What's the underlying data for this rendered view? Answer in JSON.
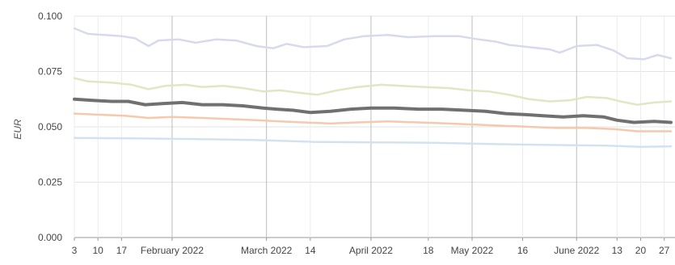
{
  "chart_data": {
    "type": "line",
    "title": "",
    "xlabel": "",
    "ylabel": "EUR",
    "ylim": [
      0,
      0.1
    ],
    "y_ticks": [
      "0.000",
      "0.025",
      "0.050",
      "0.075",
      "0.100"
    ],
    "x_range": [
      "2022-01-03",
      "2022-06-29"
    ],
    "x_ticks": [
      {
        "label": "3",
        "date": "2022-01-03",
        "major": false
      },
      {
        "label": "10",
        "date": "2022-01-10",
        "major": false
      },
      {
        "label": "17",
        "date": "2022-01-17",
        "major": false
      },
      {
        "label": "February 2022",
        "date": "2022-02-01",
        "major": true
      },
      {
        "label": "March 2022",
        "date": "2022-03-01",
        "major": true
      },
      {
        "label": "14",
        "date": "2022-03-14",
        "major": false
      },
      {
        "label": "April 2022",
        "date": "2022-04-01",
        "major": true
      },
      {
        "label": "18",
        "date": "2022-04-18",
        "major": false
      },
      {
        "label": "May 2022",
        "date": "2022-05-01",
        "major": true
      },
      {
        "label": "16",
        "date": "2022-05-16",
        "major": false
      },
      {
        "label": "June 2022",
        "date": "2022-06-01",
        "major": true
      },
      {
        "label": "13",
        "date": "2022-06-13",
        "major": false
      },
      {
        "label": "20",
        "date": "2022-06-20",
        "major": false
      },
      {
        "label": "27",
        "date": "2022-06-27",
        "major": false
      }
    ],
    "grid": true,
    "legend": "none",
    "series": [
      {
        "color": "#d9d9ee",
        "width": 2.5,
        "points": [
          [
            "2022-01-03",
            0.0945
          ],
          [
            "2022-01-07",
            0.092
          ],
          [
            "2022-01-12",
            0.0915
          ],
          [
            "2022-01-17",
            0.091
          ],
          [
            "2022-01-21",
            0.09
          ],
          [
            "2022-01-25",
            0.0865
          ],
          [
            "2022-01-28",
            0.089
          ],
          [
            "2022-02-03",
            0.0895
          ],
          [
            "2022-02-08",
            0.088
          ],
          [
            "2022-02-14",
            0.0895
          ],
          [
            "2022-02-20",
            0.089
          ],
          [
            "2022-02-26",
            0.0865
          ],
          [
            "2022-03-03",
            0.0855
          ],
          [
            "2022-03-07",
            0.0875
          ],
          [
            "2022-03-12",
            0.086
          ],
          [
            "2022-03-19",
            0.0865
          ],
          [
            "2022-03-24",
            0.0895
          ],
          [
            "2022-03-30",
            0.091
          ],
          [
            "2022-04-06",
            0.0915
          ],
          [
            "2022-04-12",
            0.0905
          ],
          [
            "2022-04-20",
            0.091
          ],
          [
            "2022-04-27",
            0.091
          ],
          [
            "2022-05-03",
            0.0895
          ],
          [
            "2022-05-08",
            0.0885
          ],
          [
            "2022-05-12",
            0.087
          ],
          [
            "2022-05-18",
            0.086
          ],
          [
            "2022-05-24",
            0.085
          ],
          [
            "2022-05-27",
            0.0835
          ],
          [
            "2022-06-01",
            0.0865
          ],
          [
            "2022-06-07",
            0.087
          ],
          [
            "2022-06-12",
            0.0845
          ],
          [
            "2022-06-16",
            0.081
          ],
          [
            "2022-06-21",
            0.0805
          ],
          [
            "2022-06-25",
            0.0825
          ],
          [
            "2022-06-29",
            0.081
          ]
        ]
      },
      {
        "color": "#dfe7c4",
        "width": 2.5,
        "points": [
          [
            "2022-01-03",
            0.072
          ],
          [
            "2022-01-07",
            0.0705
          ],
          [
            "2022-01-14",
            0.07
          ],
          [
            "2022-01-20",
            0.069
          ],
          [
            "2022-01-25",
            0.067
          ],
          [
            "2022-01-30",
            0.0685
          ],
          [
            "2022-02-05",
            0.069
          ],
          [
            "2022-02-10",
            0.068
          ],
          [
            "2022-02-16",
            0.0685
          ],
          [
            "2022-02-22",
            0.0675
          ],
          [
            "2022-02-28",
            0.066
          ],
          [
            "2022-03-05",
            0.0665
          ],
          [
            "2022-03-10",
            0.0655
          ],
          [
            "2022-03-16",
            0.0645
          ],
          [
            "2022-03-22",
            0.0665
          ],
          [
            "2022-03-28",
            0.068
          ],
          [
            "2022-04-04",
            0.069
          ],
          [
            "2022-04-10",
            0.0685
          ],
          [
            "2022-04-17",
            0.068
          ],
          [
            "2022-04-24",
            0.0675
          ],
          [
            "2022-04-30",
            0.0665
          ],
          [
            "2022-05-06",
            0.066
          ],
          [
            "2022-05-12",
            0.0645
          ],
          [
            "2022-05-18",
            0.0625
          ],
          [
            "2022-05-24",
            0.0615
          ],
          [
            "2022-05-30",
            0.062
          ],
          [
            "2022-06-04",
            0.0635
          ],
          [
            "2022-06-10",
            0.063
          ],
          [
            "2022-06-14",
            0.0615
          ],
          [
            "2022-06-19",
            0.06
          ],
          [
            "2022-06-24",
            0.061
          ],
          [
            "2022-06-29",
            0.0615
          ]
        ]
      },
      {
        "color": "#707070",
        "width": 4,
        "points": [
          [
            "2022-01-03",
            0.0625
          ],
          [
            "2022-01-08",
            0.062
          ],
          [
            "2022-01-14",
            0.0615
          ],
          [
            "2022-01-19",
            0.0615
          ],
          [
            "2022-01-24",
            0.06
          ],
          [
            "2022-01-29",
            0.0605
          ],
          [
            "2022-02-04",
            0.061
          ],
          [
            "2022-02-10",
            0.06
          ],
          [
            "2022-02-16",
            0.06
          ],
          [
            "2022-02-22",
            0.0595
          ],
          [
            "2022-02-28",
            0.0585
          ],
          [
            "2022-03-04",
            0.058
          ],
          [
            "2022-03-09",
            0.0575
          ],
          [
            "2022-03-14",
            0.0565
          ],
          [
            "2022-03-20",
            0.057
          ],
          [
            "2022-03-26",
            0.058
          ],
          [
            "2022-04-01",
            0.0585
          ],
          [
            "2022-04-08",
            0.0585
          ],
          [
            "2022-04-15",
            0.058
          ],
          [
            "2022-04-22",
            0.058
          ],
          [
            "2022-04-29",
            0.0575
          ],
          [
            "2022-05-05",
            0.057
          ],
          [
            "2022-05-11",
            0.056
          ],
          [
            "2022-05-17",
            0.0555
          ],
          [
            "2022-05-22",
            0.055
          ],
          [
            "2022-05-28",
            0.0545
          ],
          [
            "2022-06-03",
            0.055
          ],
          [
            "2022-06-09",
            0.0545
          ],
          [
            "2022-06-13",
            0.053
          ],
          [
            "2022-06-18",
            0.052
          ],
          [
            "2022-06-24",
            0.0525
          ],
          [
            "2022-06-29",
            0.052
          ]
        ]
      },
      {
        "color": "#f4c9ad",
        "width": 2.5,
        "points": [
          [
            "2022-01-03",
            0.056
          ],
          [
            "2022-01-10",
            0.0555
          ],
          [
            "2022-01-18",
            0.055
          ],
          [
            "2022-01-25",
            0.054
          ],
          [
            "2022-02-01",
            0.0545
          ],
          [
            "2022-02-10",
            0.054
          ],
          [
            "2022-02-18",
            0.0535
          ],
          [
            "2022-02-26",
            0.053
          ],
          [
            "2022-03-05",
            0.0525
          ],
          [
            "2022-03-12",
            0.052
          ],
          [
            "2022-03-20",
            0.0515
          ],
          [
            "2022-03-28",
            0.052
          ],
          [
            "2022-04-06",
            0.0525
          ],
          [
            "2022-04-15",
            0.052
          ],
          [
            "2022-04-24",
            0.0515
          ],
          [
            "2022-05-02",
            0.051
          ],
          [
            "2022-05-10",
            0.0505
          ],
          [
            "2022-05-18",
            0.05
          ],
          [
            "2022-05-26",
            0.0495
          ],
          [
            "2022-06-04",
            0.0495
          ],
          [
            "2022-06-12",
            0.049
          ],
          [
            "2022-06-19",
            0.048
          ],
          [
            "2022-06-24",
            0.048
          ],
          [
            "2022-06-29",
            0.048
          ]
        ]
      },
      {
        "color": "#d3e2f1",
        "width": 2.5,
        "points": [
          [
            "2022-01-03",
            0.045
          ],
          [
            "2022-01-20",
            0.0448
          ],
          [
            "2022-02-08",
            0.0445
          ],
          [
            "2022-02-26",
            0.044
          ],
          [
            "2022-03-15",
            0.0432
          ],
          [
            "2022-04-03",
            0.043
          ],
          [
            "2022-04-20",
            0.0428
          ],
          [
            "2022-05-08",
            0.0422
          ],
          [
            "2022-05-26",
            0.0418
          ],
          [
            "2022-06-10",
            0.0415
          ],
          [
            "2022-06-20",
            0.041
          ],
          [
            "2022-06-29",
            0.0412
          ]
        ]
      }
    ]
  }
}
